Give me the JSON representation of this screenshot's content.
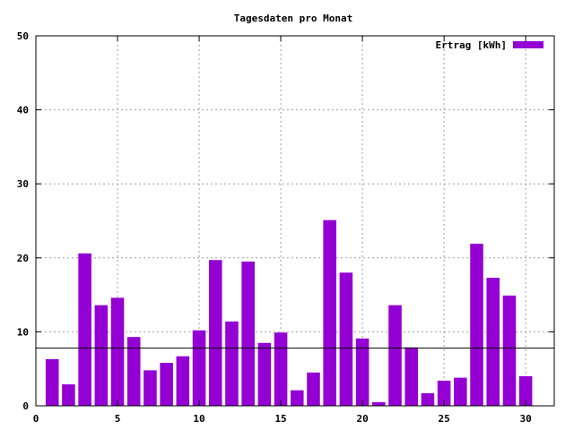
{
  "chart_data": {
    "type": "bar",
    "title": "Tagesdaten pro Monat",
    "xlabel": "",
    "ylabel": "",
    "xlim": [
      0,
      31.75
    ],
    "ylim": [
      0,
      50
    ],
    "xticks": [
      0,
      5,
      10,
      15,
      20,
      25,
      30
    ],
    "yticks": [
      0,
      10,
      20,
      30,
      40,
      50
    ],
    "grid": true,
    "legend_position": "top-right",
    "series": [
      {
        "name": "Ertrag [kWh]",
        "color": "#9400d3",
        "x": [
          1,
          2,
          3,
          4,
          5,
          6,
          7,
          8,
          9,
          10,
          11,
          12,
          13,
          14,
          15,
          16,
          17,
          18,
          19,
          20,
          21,
          22,
          23,
          24,
          25,
          26,
          27,
          28,
          29,
          30
        ],
        "values": [
          6.3,
          2.9,
          20.6,
          13.6,
          14.6,
          9.3,
          4.8,
          5.8,
          6.7,
          10.2,
          19.7,
          11.4,
          19.5,
          8.5,
          9.9,
          2.1,
          4.5,
          25.1,
          18.0,
          9.1,
          0.5,
          13.6,
          7.9,
          1.7,
          3.4,
          3.8,
          21.9,
          17.3,
          14.9,
          4.0
        ]
      }
    ],
    "reference_line": 7.8
  }
}
